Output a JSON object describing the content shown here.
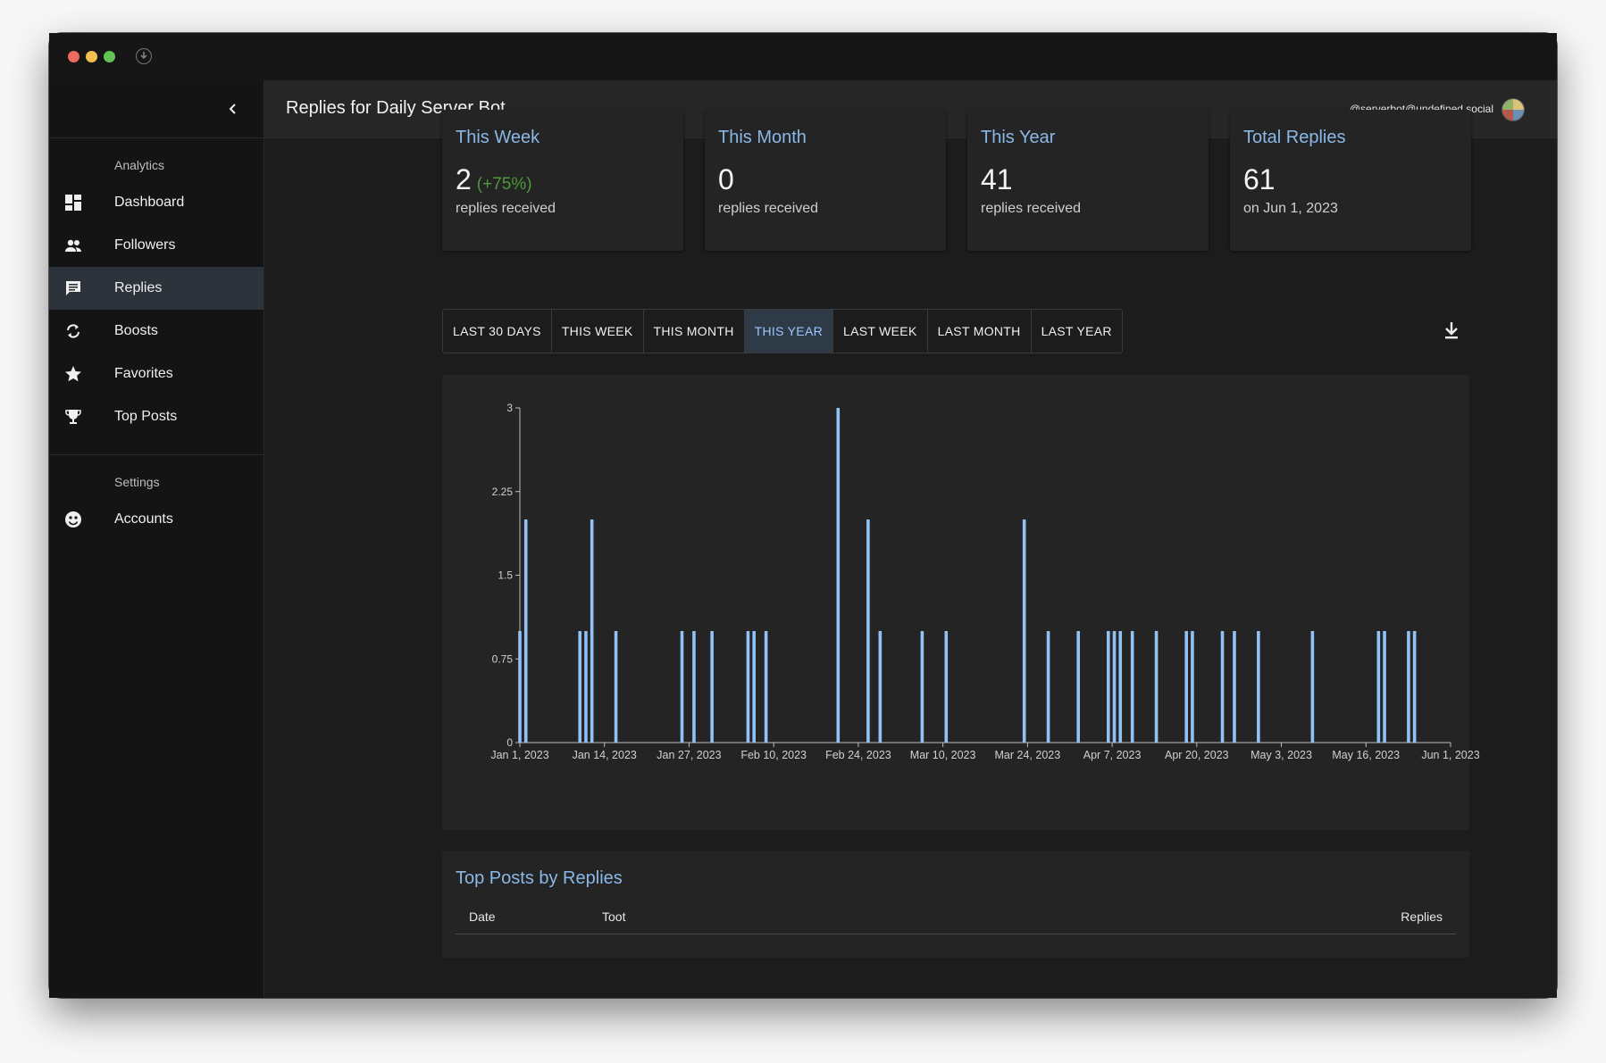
{
  "app": {
    "page_title": "Replies for Daily Server Bot",
    "account_handle": "@serverbot@undefined.social"
  },
  "sidebar": {
    "sections": [
      {
        "label": "Analytics",
        "items": [
          {
            "label": "Dashboard",
            "icon": "dashboard-icon"
          },
          {
            "label": "Followers",
            "icon": "people-icon"
          },
          {
            "label": "Replies",
            "icon": "comment-icon",
            "active": true
          },
          {
            "label": "Boosts",
            "icon": "repeat-icon"
          },
          {
            "label": "Favorites",
            "icon": "star-icon"
          },
          {
            "label": "Top Posts",
            "icon": "trophy-icon"
          }
        ]
      },
      {
        "label": "Settings",
        "items": [
          {
            "label": "Accounts",
            "icon": "mastodon-icon"
          }
        ]
      }
    ]
  },
  "stats": [
    {
      "title": "This Week",
      "value": "2",
      "change": "(+75%)",
      "sub": "replies received"
    },
    {
      "title": "This Month",
      "value": "0",
      "change": "",
      "sub": "replies received"
    },
    {
      "title": "This Year",
      "value": "41",
      "change": "",
      "sub": "replies received"
    },
    {
      "title": "Total Replies",
      "value": "61",
      "change": "",
      "sub": "on Jun 1, 2023"
    }
  ],
  "range_tabs": [
    {
      "label": "LAST 30 DAYS",
      "active": false
    },
    {
      "label": "THIS WEEK",
      "active": false
    },
    {
      "label": "THIS MONTH",
      "active": false
    },
    {
      "label": "THIS YEAR",
      "active": true
    },
    {
      "label": "LAST WEEK",
      "active": false
    },
    {
      "label": "LAST MONTH",
      "active": false
    },
    {
      "label": "LAST YEAR",
      "active": false
    }
  ],
  "colors": {
    "bar": "#90c2f5",
    "accent": "#8ab8e8",
    "positive": "#4c9a3a"
  },
  "chart_data": {
    "type": "bar",
    "title": "",
    "xlabel": "",
    "ylabel": "",
    "ylim": [
      0,
      3
    ],
    "yticks": [
      "0",
      "0.75",
      "1.5",
      "2.25",
      "3"
    ],
    "xticks": [
      "Jan 1, 2023",
      "Jan 14, 2023",
      "Jan 27, 2023",
      "Feb 10, 2023",
      "Feb 24, 2023",
      "Mar 10, 2023",
      "Mar 24, 2023",
      "Apr 7, 2023",
      "Apr 20, 2023",
      "May 3, 2023",
      "May 16, 2023",
      "Jun 1, 2023"
    ],
    "x_domain": [
      "2023-01-01",
      "2023-06-05"
    ],
    "grid": false,
    "series": [
      {
        "points": [
          {
            "date": "2023-01-01",
            "value": 1
          },
          {
            "date": "2023-01-02",
            "value": 2
          },
          {
            "date": "2023-01-11",
            "value": 1
          },
          {
            "date": "2023-01-12",
            "value": 1
          },
          {
            "date": "2023-01-13",
            "value": 2
          },
          {
            "date": "2023-01-17",
            "value": 1
          },
          {
            "date": "2023-01-28",
            "value": 1
          },
          {
            "date": "2023-01-30",
            "value": 1
          },
          {
            "date": "2023-02-02",
            "value": 1
          },
          {
            "date": "2023-02-08",
            "value": 1
          },
          {
            "date": "2023-02-09",
            "value": 1
          },
          {
            "date": "2023-02-11",
            "value": 1
          },
          {
            "date": "2023-02-23",
            "value": 3
          },
          {
            "date": "2023-02-28",
            "value": 2
          },
          {
            "date": "2023-03-02",
            "value": 1
          },
          {
            "date": "2023-03-09",
            "value": 1
          },
          {
            "date": "2023-03-13",
            "value": 1
          },
          {
            "date": "2023-03-26",
            "value": 2
          },
          {
            "date": "2023-03-30",
            "value": 1
          },
          {
            "date": "2023-04-04",
            "value": 1
          },
          {
            "date": "2023-04-09",
            "value": 1
          },
          {
            "date": "2023-04-10",
            "value": 1
          },
          {
            "date": "2023-04-11",
            "value": 1
          },
          {
            "date": "2023-04-13",
            "value": 1
          },
          {
            "date": "2023-04-17",
            "value": 1
          },
          {
            "date": "2023-04-22",
            "value": 1
          },
          {
            "date": "2023-04-23",
            "value": 1
          },
          {
            "date": "2023-04-28",
            "value": 1
          },
          {
            "date": "2023-04-30",
            "value": 1
          },
          {
            "date": "2023-05-04",
            "value": 1
          },
          {
            "date": "2023-05-13",
            "value": 1
          },
          {
            "date": "2023-05-24",
            "value": 1
          },
          {
            "date": "2023-05-25",
            "value": 1
          },
          {
            "date": "2023-05-29",
            "value": 1
          },
          {
            "date": "2023-05-30",
            "value": 1
          }
        ]
      }
    ]
  },
  "top_posts": {
    "title": "Top Posts by Replies",
    "columns": [
      "Date",
      "Toot",
      "Replies"
    ]
  }
}
